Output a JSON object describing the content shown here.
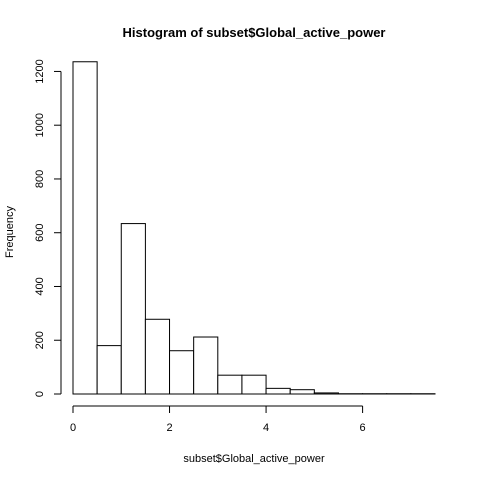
{
  "chart_data": {
    "type": "bar",
    "title": "Histogram of subset$Global_active_power",
    "xlabel": "subset$Global_active_power",
    "ylabel": "Frequency",
    "bin_width": 0.5,
    "bins": [
      {
        "x0": 0.0,
        "x1": 0.5,
        "count": 1236
      },
      {
        "x0": 0.5,
        "x1": 1.0,
        "count": 180
      },
      {
        "x0": 1.0,
        "x1": 1.5,
        "count": 634
      },
      {
        "x0": 1.5,
        "x1": 2.0,
        "count": 278
      },
      {
        "x0": 2.0,
        "x1": 2.5,
        "count": 161
      },
      {
        "x0": 2.5,
        "x1": 3.0,
        "count": 212
      },
      {
        "x0": 3.0,
        "x1": 3.5,
        "count": 70
      },
      {
        "x0": 3.5,
        "x1": 4.0,
        "count": 70
      },
      {
        "x0": 4.0,
        "x1": 4.5,
        "count": 21
      },
      {
        "x0": 4.5,
        "x1": 5.0,
        "count": 16
      },
      {
        "x0": 5.0,
        "x1": 5.5,
        "count": 4
      },
      {
        "x0": 5.5,
        "x1": 6.0,
        "count": 1
      },
      {
        "x0": 6.0,
        "x1": 6.5,
        "count": 1
      },
      {
        "x0": 6.5,
        "x1": 7.0,
        "count": 1
      },
      {
        "x0": 7.0,
        "x1": 7.5,
        "count": 1
      }
    ],
    "xlim": [
      0,
      7.5
    ],
    "ylim": [
      0,
      1250
    ],
    "x_ticks": [
      0,
      2,
      4,
      6
    ],
    "y_ticks": [
      0,
      200,
      400,
      600,
      800,
      1000,
      1200
    ],
    "grid": false,
    "colors": {
      "bar_fill": "#ffffff",
      "bar_stroke": "#000000",
      "axis": "#000000",
      "text": "#000000"
    }
  }
}
